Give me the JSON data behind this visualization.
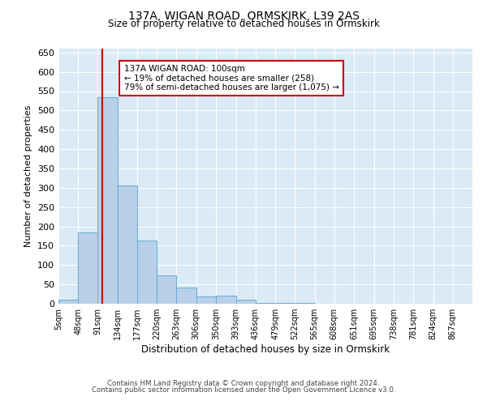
{
  "title": "137A, WIGAN ROAD, ORMSKIRK, L39 2AS",
  "subtitle": "Size of property relative to detached houses in Ormskirk",
  "xlabel": "Distribution of detached houses by size in Ormskirk",
  "ylabel": "Number of detached properties",
  "bin_edges": [
    5,
    48,
    91,
    134,
    177,
    220,
    263,
    306,
    350,
    393,
    436,
    479,
    522,
    565,
    608,
    651,
    695,
    738,
    781,
    824,
    867,
    910
  ],
  "bar_heights": [
    10,
    185,
    535,
    305,
    163,
    73,
    42,
    18,
    20,
    10,
    2,
    2,
    2,
    0,
    1,
    1,
    0,
    1,
    0,
    1,
    1
  ],
  "bar_color": "#b8d0ea",
  "bar_edge_color": "#6aaad4",
  "bar_edge_width": 0.7,
  "bg_color": "#daeaf6",
  "grid_color": "#ffffff",
  "red_line_x": 100,
  "annotation_text": "137A WIGAN ROAD: 100sqm\n← 19% of detached houses are smaller (258)\n79% of semi-detached houses are larger (1,075) →",
  "annotation_box_color": "#ffffff",
  "annotation_box_edge_color": "#cc0000",
  "red_line_color": "#cc0000",
  "ylim": [
    0,
    660
  ],
  "yticks": [
    0,
    50,
    100,
    150,
    200,
    250,
    300,
    350,
    400,
    450,
    500,
    550,
    600,
    650
  ],
  "tick_labels": [
    "5sqm",
    "48sqm",
    "91sqm",
    "134sqm",
    "177sqm",
    "220sqm",
    "263sqm",
    "306sqm",
    "350sqm",
    "393sqm",
    "436sqm",
    "479sqm",
    "522sqm",
    "565sqm",
    "608sqm",
    "651sqm",
    "695sqm",
    "738sqm",
    "781sqm",
    "824sqm",
    "867sqm"
  ],
  "footer1": "Contains HM Land Registry data © Crown copyright and database right 2024.",
  "footer2": "Contains public sector information licensed under the Open Government Licence v3.0."
}
